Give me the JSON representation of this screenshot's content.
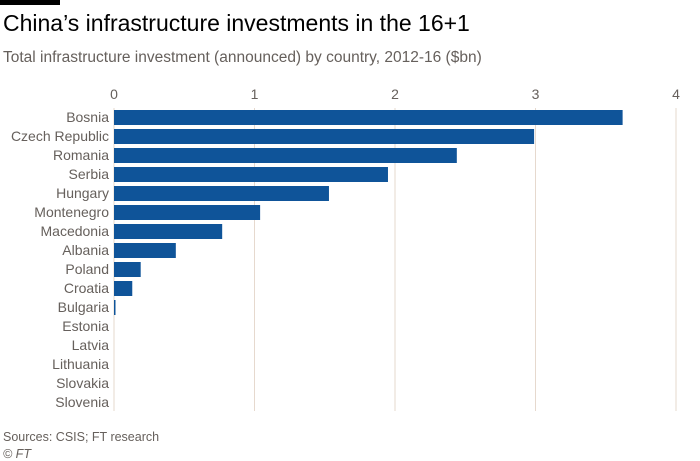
{
  "header": {
    "title": "China’s infrastructure investments in the 16+1",
    "subtitle": "Total infrastructure investment (announced) by country, 2012-16 ($bn)"
  },
  "footer": {
    "source": "Sources: CSIS; FT research",
    "copyright": "© FT"
  },
  "colors": {
    "bar": "#0f5499",
    "grid": "#e6d9ce",
    "text": "#66605c",
    "accent": "#000000"
  },
  "chart_data": {
    "type": "bar",
    "orientation": "horizontal",
    "title": "China’s infrastructure investments in the 16+1",
    "subtitle": "Total infrastructure investment (announced) by country, 2012-16 ($bn)",
    "xlabel": "",
    "ylabel": "",
    "xlim": [
      0,
      4
    ],
    "x_ticks": [
      0,
      1,
      2,
      3,
      4
    ],
    "grid": "vertical",
    "categories": [
      "Bosnia",
      "Czech Republic",
      "Romania",
      "Serbia",
      "Hungary",
      "Montenegro",
      "Macedonia",
      "Albania",
      "Poland",
      "Croatia",
      "Bulgaria",
      "Estonia",
      "Latvia",
      "Lithuania",
      "Slovakia",
      "Slovenia"
    ],
    "values": [
      3.62,
      2.99,
      2.44,
      1.95,
      1.53,
      1.04,
      0.77,
      0.44,
      0.19,
      0.13,
      0.01,
      0,
      0,
      0,
      0,
      0
    ]
  }
}
